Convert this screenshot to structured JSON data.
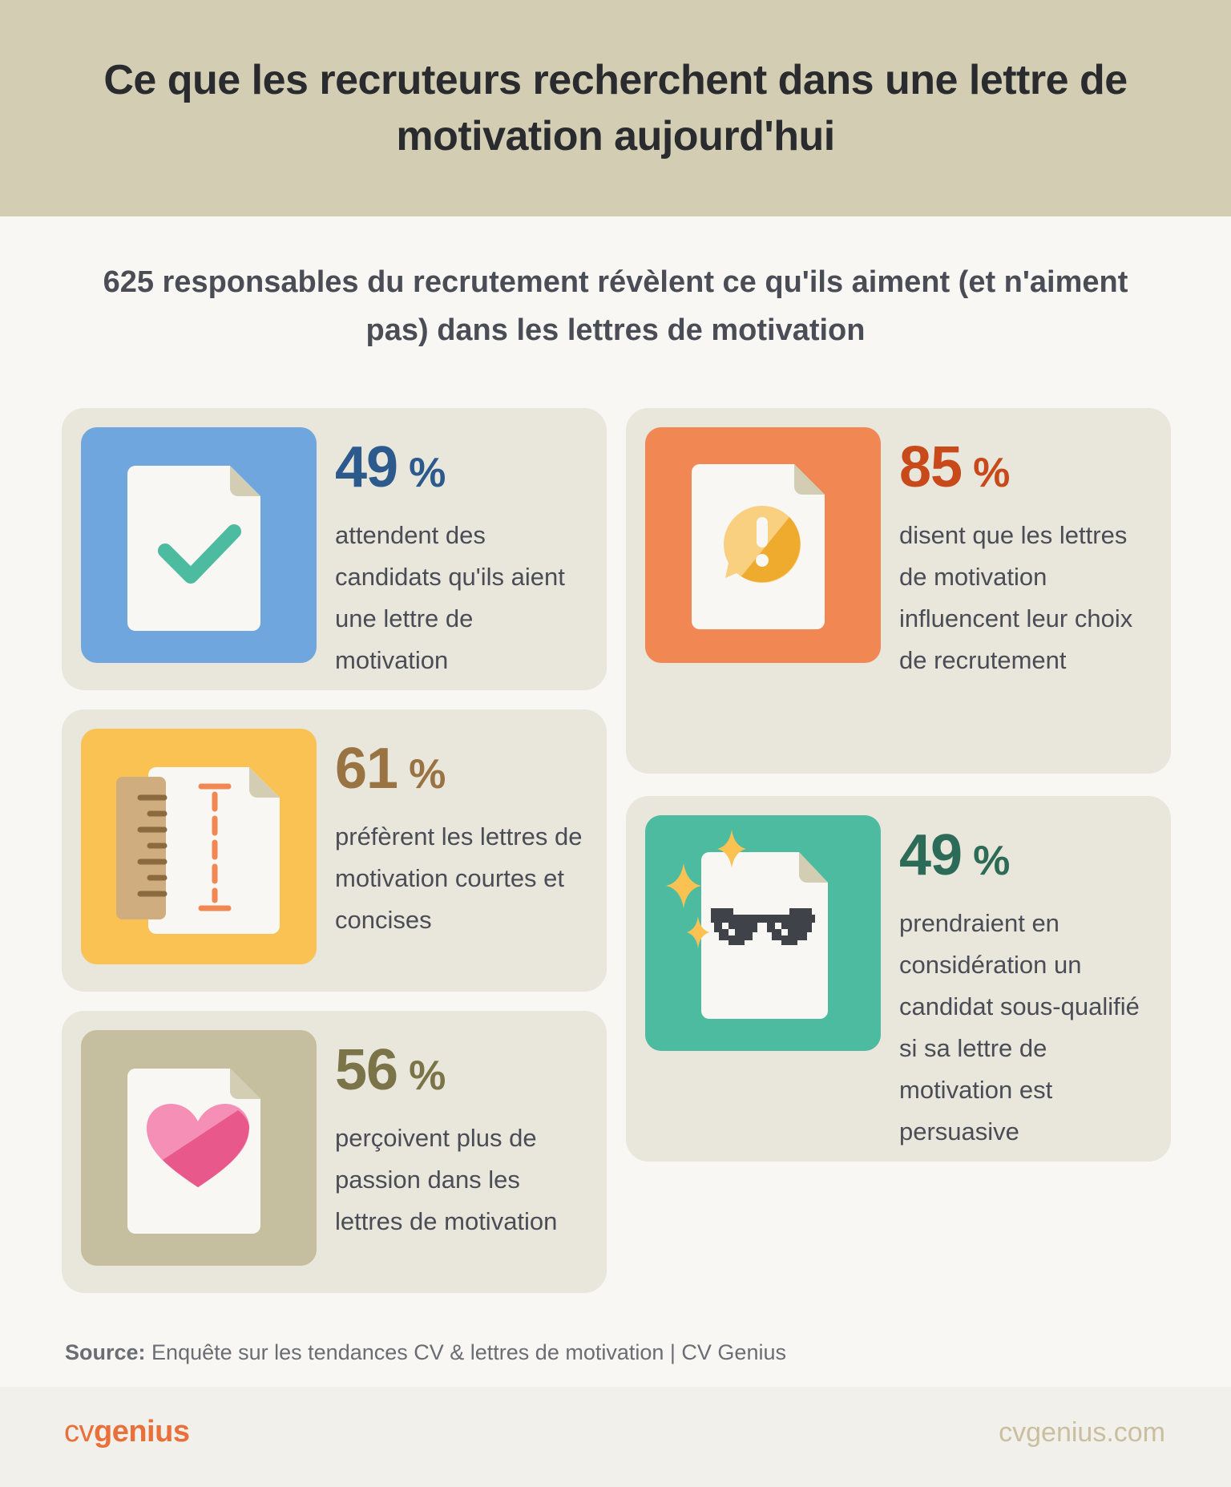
{
  "header": {
    "title": "Ce que les recruteurs recherchent dans une lettre de motivation aujourd'hui"
  },
  "subtitle": "625 responsables du recrutement révèlent ce qu'ils aiment (et n'aiment pas) dans les lettres de motivation",
  "stats": [
    {
      "value": "49",
      "unit": "%",
      "text": "attendent des candidats qu'ils aient une lettre de motivation",
      "color": "#2c5a8c",
      "tile_color": "#6fa6de",
      "icon": "document-check-icon"
    },
    {
      "value": "61",
      "unit": "%",
      "text": "préfèrent les lettres de motivation courtes et concises",
      "color": "#9a7343",
      "tile_color": "#f9c253",
      "icon": "document-ruler-icon"
    },
    {
      "value": "56",
      "unit": "%",
      "text": "perçoivent plus de passion dans les lettres de motivation",
      "color": "#7c7449",
      "tile_color": "#c5bf9f",
      "icon": "document-heart-icon"
    },
    {
      "value": "85",
      "unit": "%",
      "text": "disent que les lettres de motivation influencent leur choix de recrutement",
      "color": "#c8491a",
      "tile_color": "#f18752",
      "icon": "document-alert-icon"
    },
    {
      "value": "49",
      "unit": "%",
      "text": "prendraient en considération un candidat sous-qualifié si sa lettre de motivation est persuasive",
      "color": "#2c6b58",
      "tile_color": "#4dbba0",
      "icon": "document-sunglasses-icon"
    }
  ],
  "source": {
    "label": "Source:",
    "text": "Enquête sur les tendances CV & lettres de motivation | CV Genius"
  },
  "footer": {
    "logo_cv": "cv",
    "logo_genius": "genius",
    "site": "cvgenius.com"
  }
}
